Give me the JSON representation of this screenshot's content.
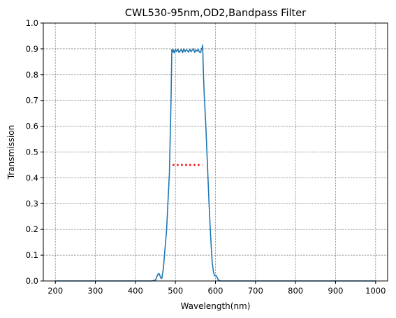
{
  "chart_data": {
    "type": "line",
    "title": "CWL530-95nm,OD2,Bandpass Filter",
    "xlabel": "Wavelength(nm)",
    "ylabel": "Transmission",
    "xlim": [
      170,
      1030
    ],
    "ylim": [
      0,
      1.0
    ],
    "xticks": [
      "200",
      "300",
      "400",
      "500",
      "600",
      "700",
      "800",
      "900",
      "1000"
    ],
    "yticks": [
      "0.0",
      "0.1",
      "0.2",
      "0.3",
      "0.4",
      "0.5",
      "0.6",
      "0.7",
      "0.8",
      "0.9",
      "1.0"
    ],
    "grid": true,
    "grid_style": "dashed",
    "series": [
      {
        "color": "#1f77b4",
        "style": "solid",
        "x": [
          200,
          300,
          400,
          440,
          450,
          454,
          457,
          460,
          463,
          466,
          470,
          478,
          485,
          489,
          491,
          493,
          495,
          497,
          500,
          503,
          506,
          509,
          512,
          515,
          518,
          521,
          524,
          527,
          530,
          533,
          536,
          539,
          542,
          545,
          548,
          551,
          554,
          557,
          560,
          563,
          565,
          567,
          568,
          570,
          572,
          576,
          580,
          584,
          588,
          592,
          595,
          598,
          601,
          604,
          607,
          612,
          620,
          700,
          800,
          900,
          1000
        ],
        "y": [
          0.0,
          0.0,
          0.0,
          0.0,
          0.003,
          0.018,
          0.028,
          0.027,
          0.012,
          0.01,
          0.05,
          0.2,
          0.42,
          0.7,
          0.898,
          0.888,
          0.896,
          0.884,
          0.897,
          0.89,
          0.899,
          0.886,
          0.892,
          0.898,
          0.885,
          0.9,
          0.889,
          0.897,
          0.893,
          0.887,
          0.899,
          0.889,
          0.895,
          0.9,
          0.886,
          0.896,
          0.891,
          0.899,
          0.887,
          0.885,
          0.9,
          0.905,
          0.915,
          0.8,
          0.72,
          0.6,
          0.45,
          0.3,
          0.17,
          0.07,
          0.035,
          0.02,
          0.022,
          0.014,
          0.004,
          0.0,
          0.0,
          0.0,
          0.0,
          0.0,
          0.0
        ]
      },
      {
        "color": "#ff0000",
        "style": "dotted",
        "x": [
          493,
          567
        ],
        "y": [
          0.45,
          0.45
        ]
      }
    ]
  }
}
